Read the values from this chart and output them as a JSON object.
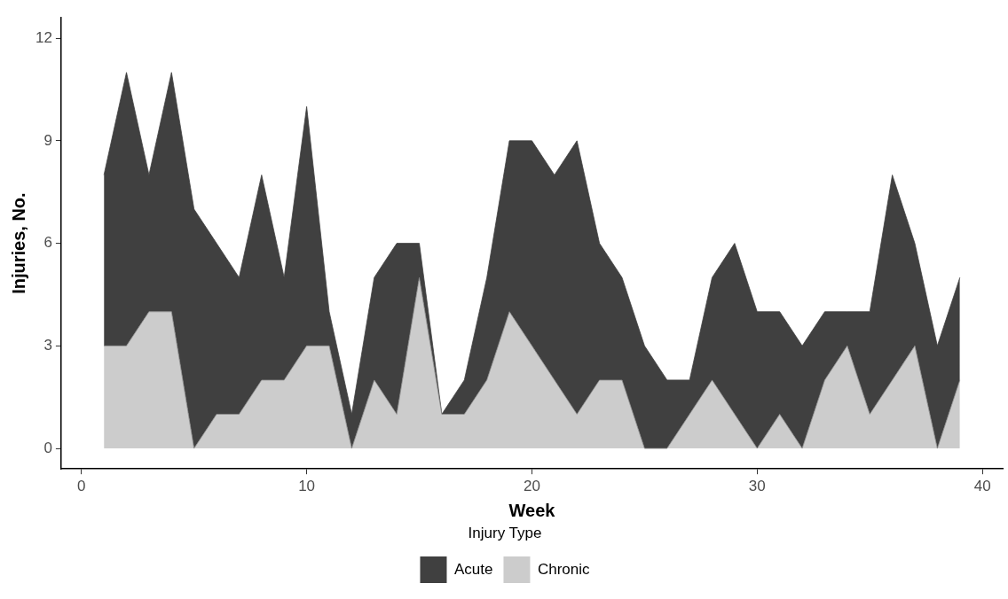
{
  "chart_data": {
    "type": "area",
    "stacked": true,
    "xlabel": "Week",
    "ylabel": "Injuries, No.",
    "legend_title": "Injury Type",
    "legend": "bottom",
    "grid": false,
    "x": [
      1,
      2,
      3,
      4,
      5,
      6,
      7,
      8,
      9,
      10,
      11,
      12,
      13,
      14,
      15,
      16,
      17,
      18,
      19,
      20,
      21,
      22,
      23,
      24,
      25,
      26,
      27,
      28,
      29,
      30,
      31,
      32,
      33,
      34,
      35,
      36,
      37,
      38,
      39
    ],
    "xlim": [
      -0.9,
      40.9
    ],
    "xticks": [
      0,
      10,
      20,
      30,
      40
    ],
    "ylim": [
      -0.6,
      12.6
    ],
    "yticks": [
      0,
      3,
      6,
      9,
      12
    ],
    "series": [
      {
        "name": "Chronic",
        "color": "#cccccc",
        "values": [
          3,
          3,
          4,
          4,
          0,
          1,
          1,
          2,
          2,
          3,
          3,
          0,
          2,
          1,
          5,
          1,
          1,
          2,
          4,
          3,
          2,
          1,
          2,
          2,
          0,
          0,
          1,
          2,
          1,
          0,
          1,
          0,
          2,
          3,
          1,
          2,
          3,
          0,
          2
        ]
      },
      {
        "name": "Acute",
        "color": "#404040",
        "values": [
          5,
          8,
          4,
          7,
          7,
          5,
          4,
          6,
          3,
          7,
          1,
          1,
          3,
          5,
          1,
          0,
          1,
          3,
          5,
          6,
          6,
          8,
          4,
          3,
          3,
          2,
          1,
          3,
          5,
          4,
          3,
          3,
          2,
          1,
          3,
          6,
          3,
          3,
          3
        ]
      }
    ]
  }
}
